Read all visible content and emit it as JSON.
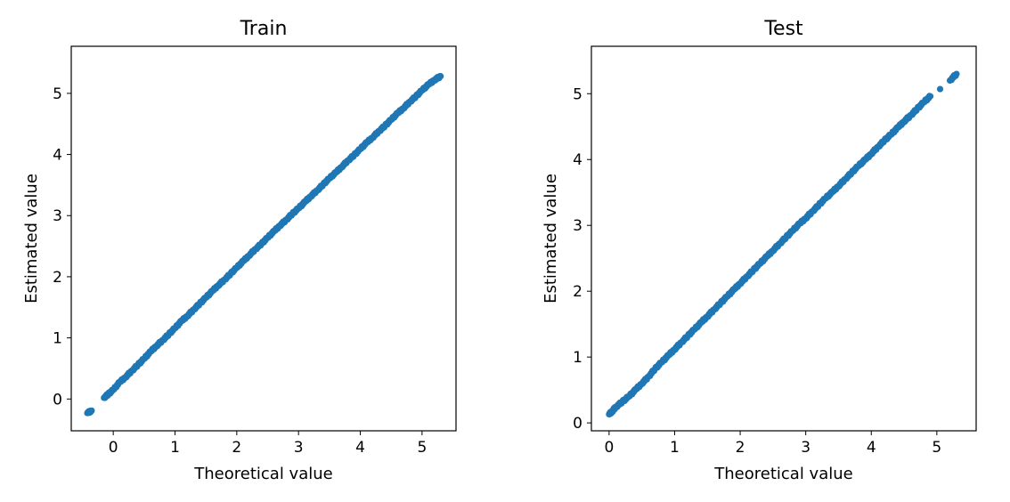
{
  "chart_data": [
    {
      "type": "scatter",
      "title": "Train",
      "xlabel": "Theoretical value",
      "ylabel": "Estimated value",
      "xlim": [
        -0.68,
        5.55
      ],
      "ylim": [
        -0.52,
        5.77
      ],
      "xticks": [
        0,
        1,
        2,
        3,
        4,
        5
      ],
      "yticks": [
        0,
        1,
        2,
        3,
        4,
        5
      ],
      "grid": false,
      "marker_color": "#1f77b4",
      "points": [
        [
          -0.42,
          -0.23
        ],
        [
          -0.35,
          -0.19
        ],
        [
          -0.15,
          0.02
        ],
        [
          -0.08,
          0.08
        ],
        [
          0.0,
          0.15
        ],
        [
          0.1,
          0.27
        ],
        [
          0.2,
          0.36
        ],
        [
          0.3,
          0.46
        ],
        [
          0.4,
          0.56
        ],
        [
          0.5,
          0.66
        ],
        [
          0.6,
          0.77
        ],
        [
          0.7,
          0.87
        ],
        [
          0.8,
          0.96
        ],
        [
          0.9,
          1.06
        ],
        [
          1.0,
          1.16
        ],
        [
          1.1,
          1.27
        ],
        [
          1.2,
          1.36
        ],
        [
          1.3,
          1.46
        ],
        [
          1.4,
          1.56
        ],
        [
          1.5,
          1.66
        ],
        [
          1.6,
          1.76
        ],
        [
          1.7,
          1.86
        ],
        [
          1.8,
          1.95
        ],
        [
          1.9,
          2.05
        ],
        [
          2.0,
          2.15
        ],
        [
          2.1,
          2.25
        ],
        [
          2.2,
          2.35
        ],
        [
          2.3,
          2.45
        ],
        [
          2.4,
          2.54
        ],
        [
          2.5,
          2.64
        ],
        [
          2.6,
          2.74
        ],
        [
          2.7,
          2.84
        ],
        [
          2.8,
          2.93
        ],
        [
          2.9,
          3.03
        ],
        [
          3.0,
          3.12
        ],
        [
          3.1,
          3.22
        ],
        [
          3.2,
          3.32
        ],
        [
          3.3,
          3.41
        ],
        [
          3.4,
          3.51
        ],
        [
          3.5,
          3.61
        ],
        [
          3.6,
          3.7
        ],
        [
          3.7,
          3.8
        ],
        [
          3.8,
          3.9
        ],
        [
          3.9,
          3.99
        ],
        [
          4.0,
          4.09
        ],
        [
          4.1,
          4.19
        ],
        [
          4.2,
          4.28
        ],
        [
          4.3,
          4.38
        ],
        [
          4.4,
          4.47
        ],
        [
          4.5,
          4.57
        ],
        [
          4.6,
          4.67
        ],
        [
          4.7,
          4.76
        ],
        [
          4.8,
          4.86
        ],
        [
          4.9,
          4.95
        ],
        [
          5.0,
          5.05
        ],
        [
          5.1,
          5.14
        ],
        [
          5.2,
          5.22
        ],
        [
          5.3,
          5.28
        ]
      ]
    },
    {
      "type": "scatter",
      "title": "Test",
      "xlabel": "Theoretical value",
      "ylabel": "Estimated value",
      "xlim": [
        -0.27,
        5.6
      ],
      "ylim": [
        -0.12,
        5.72
      ],
      "xticks": [
        0,
        1,
        2,
        3,
        4,
        5
      ],
      "yticks": [
        0,
        1,
        2,
        3,
        4,
        5
      ],
      "grid": false,
      "marker_color": "#1f77b4",
      "points": [
        [
          0.0,
          0.13
        ],
        [
          0.05,
          0.18
        ],
        [
          0.1,
          0.24
        ],
        [
          0.2,
          0.32
        ],
        [
          0.3,
          0.4
        ],
        [
          0.4,
          0.5
        ],
        [
          0.5,
          0.6
        ],
        [
          0.6,
          0.7
        ],
        [
          0.7,
          0.82
        ],
        [
          0.8,
          0.92
        ],
        [
          0.9,
          1.02
        ],
        [
          1.0,
          1.12
        ],
        [
          1.1,
          1.22
        ],
        [
          1.2,
          1.32
        ],
        [
          1.3,
          1.42
        ],
        [
          1.4,
          1.52
        ],
        [
          1.5,
          1.62
        ],
        [
          1.6,
          1.72
        ],
        [
          1.7,
          1.82
        ],
        [
          1.8,
          1.92
        ],
        [
          1.9,
          2.02
        ],
        [
          2.0,
          2.12
        ],
        [
          2.1,
          2.22
        ],
        [
          2.2,
          2.32
        ],
        [
          2.3,
          2.42
        ],
        [
          2.4,
          2.52
        ],
        [
          2.5,
          2.62
        ],
        [
          2.6,
          2.72
        ],
        [
          2.7,
          2.82
        ],
        [
          2.8,
          2.92
        ],
        [
          2.9,
          3.02
        ],
        [
          3.0,
          3.11
        ],
        [
          3.1,
          3.21
        ],
        [
          3.2,
          3.31
        ],
        [
          3.3,
          3.41
        ],
        [
          3.4,
          3.5
        ],
        [
          3.5,
          3.6
        ],
        [
          3.6,
          3.7
        ],
        [
          3.7,
          3.8
        ],
        [
          3.8,
          3.9
        ],
        [
          3.9,
          3.99
        ],
        [
          4.0,
          4.09
        ],
        [
          4.1,
          4.19
        ],
        [
          4.2,
          4.29
        ],
        [
          4.3,
          4.38
        ],
        [
          4.4,
          4.48
        ],
        [
          4.5,
          4.58
        ],
        [
          4.6,
          4.67
        ],
        [
          4.7,
          4.77
        ],
        [
          4.8,
          4.87
        ],
        [
          4.9,
          4.96
        ],
        [
          5.05,
          5.07
        ],
        [
          5.2,
          5.2
        ],
        [
          5.3,
          5.3
        ]
      ]
    }
  ]
}
